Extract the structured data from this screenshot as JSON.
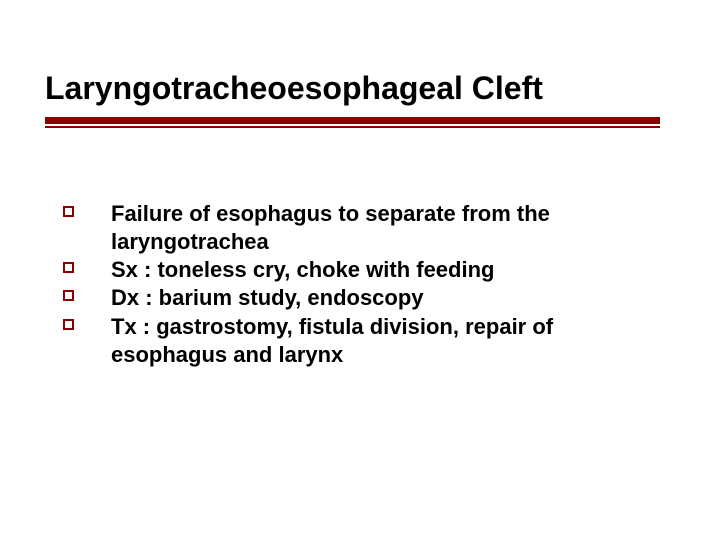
{
  "slide": {
    "title": "Laryngotracheoesophageal Cleft",
    "rule_color": "#8b0000",
    "rule_thick_height": 7,
    "rule_thin_height": 2,
    "bullet_marker": {
      "size": 11,
      "border_color": "#8b0000",
      "border_width": 2
    },
    "bullets": [
      "Failure of esophagus to separate from the laryngotrachea",
      "Sx : toneless cry, choke with feeding",
      "Dx : barium study, endoscopy",
      "Tx : gastrostomy, fistula division, repair of esophagus and larynx"
    ],
    "typography": {
      "title_fontsize": 32,
      "title_weight": "bold",
      "body_fontsize": 22,
      "body_weight": "bold",
      "font_family": "Arial"
    },
    "background_color": "#ffffff",
    "text_color": "#000000"
  }
}
